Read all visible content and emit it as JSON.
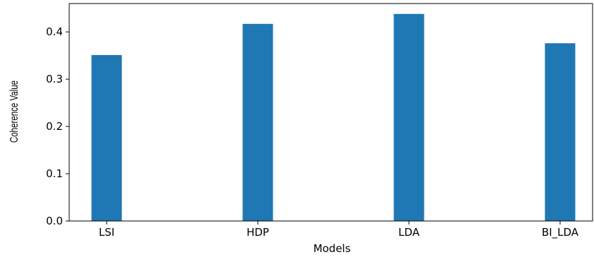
{
  "chart_data": {
    "type": "bar",
    "categories": [
      "LSI",
      "HDP",
      "LDA",
      "BI_LDA"
    ],
    "values": [
      0.351,
      0.417,
      0.438,
      0.376
    ],
    "xlabel": "Models",
    "ylabel": "Coherence Value",
    "ylim": [
      0,
      0.46
    ],
    "yticks": [
      "0.0",
      "0.1",
      "0.2",
      "0.3",
      "0.4"
    ],
    "bar_color": "#1f77b4",
    "grid": false
  }
}
